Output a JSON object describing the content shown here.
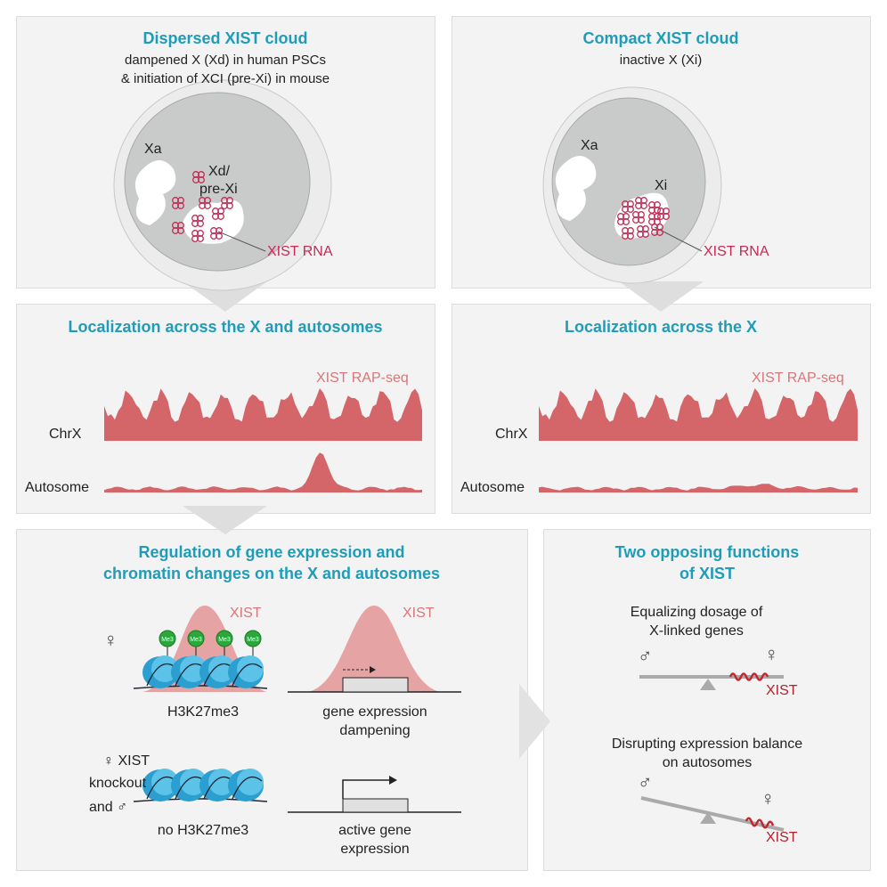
{
  "colors": {
    "title": "#1e9cb8",
    "xist_rna": "#c42a55",
    "rap_seq": "#d4666a",
    "nucleosome": "#2a9fd0",
    "me3": "#2aa83a"
  },
  "panel_dispersed": {
    "title": "Dispersed XIST cloud",
    "subtitle_lines": [
      "dampened X (Xd) in human PSCs",
      "& initiation of XCI (pre-Xi) in mouse"
    ],
    "xa": "Xa",
    "xd_lines": [
      "Xd/",
      "pre-Xi"
    ],
    "xist_rna": "XIST RNA"
  },
  "panel_compact": {
    "title": "Compact XIST cloud",
    "subtitle": "inactive X (Xi)",
    "xa": "Xa",
    "xi": "Xi",
    "xist_rna": "XIST RNA"
  },
  "panel_loc_autosomes": {
    "title": "Localization across the X and autosomes",
    "track_label": "XIST RAP-seq",
    "chrx": "ChrX",
    "autosome": "Autosome"
  },
  "panel_loc_x": {
    "title": "Localization across the X",
    "track_label": "XIST RAP-seq",
    "chrx": "ChrX",
    "autosome": "Autosome"
  },
  "panel_regulation": {
    "title_lines": [
      "Regulation of gene expression and",
      "chromatin changes on the X and autosomes"
    ],
    "female_symbol": "♀",
    "xist_label_1": "XIST",
    "xist_label_2": "XIST",
    "me3": "Me3",
    "h3k27me3": "H3K27me3",
    "dampening_lines": [
      "gene expression",
      "dampening"
    ],
    "knockout_lines": [
      "♀ XIST",
      "knockout",
      "and ♂"
    ],
    "no_h3k27me3": "no H3K27me3",
    "active_lines": [
      "active gene",
      "expression"
    ]
  },
  "panel_functions": {
    "title_lines": [
      "Two opposing functions",
      "of XIST"
    ],
    "equalizing_lines": [
      "Equalizing dosage of",
      "X-linked genes"
    ],
    "disrupting_lines": [
      "Disrupting expression balance",
      "on autosomes"
    ],
    "male_symbol": "♂",
    "female_symbol": "♀",
    "xist": "XIST"
  }
}
